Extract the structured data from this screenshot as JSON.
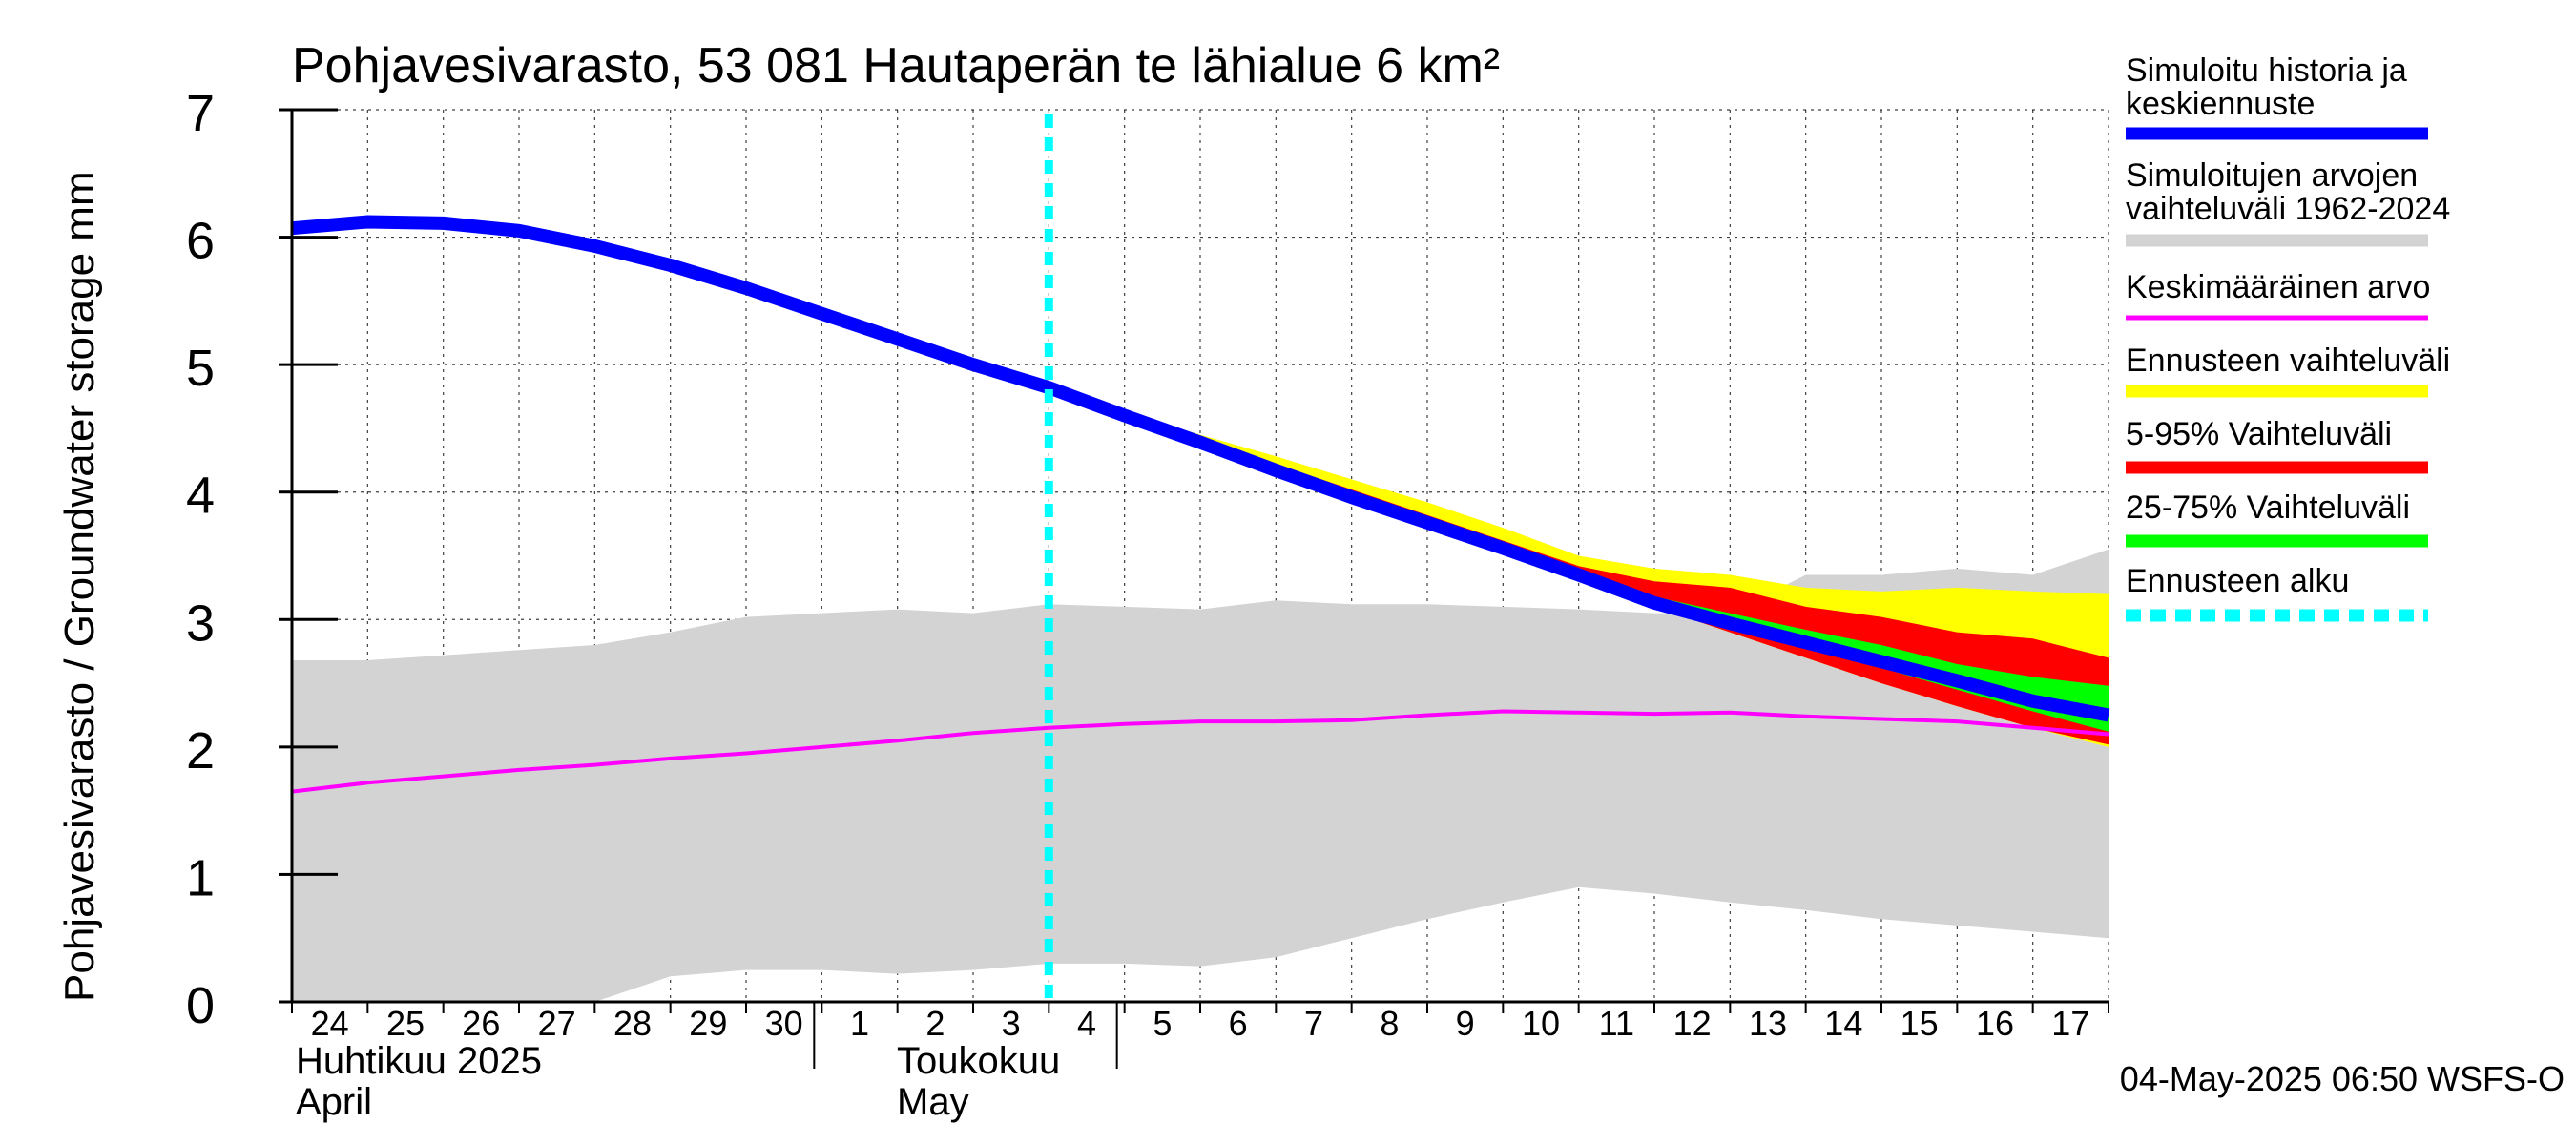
{
  "chart_data": {
    "type": "area",
    "title": "Pohjavesivarasto, 53 081 Hautaperän te lähialue 6 km²",
    "ylabel": "Pohjavesivarasto / Groundwater storage   mm",
    "ylim": [
      0,
      7
    ],
    "yticks": [
      0,
      1,
      2,
      3,
      4,
      5,
      6,
      7
    ],
    "xlim": [
      0,
      24
    ],
    "x_tick_labels": [
      "24",
      "25",
      "26",
      "27",
      "28",
      "29",
      "30",
      "1",
      "2",
      "3",
      "4",
      "5",
      "6",
      "7",
      "8",
      "9",
      "10",
      "11",
      "12",
      "13",
      "14",
      "15",
      "16",
      "17"
    ],
    "month_labels": [
      {
        "fi": "Huhtikuu  2025",
        "en": "April"
      },
      {
        "fi": "Toukokuu",
        "en": "May"
      }
    ],
    "forecast_start_x": 10.0,
    "grid": true,
    "legend_position": "right",
    "legend": [
      {
        "label": "Simuloitu historia ja keskiennuste",
        "color": "#0000ff"
      },
      {
        "label": "Simuloitujen arvojen vaihteluväli 1962-2024",
        "color": "#d3d3d3"
      },
      {
        "label": "Keskimääräinen arvo",
        "color": "#ff00ff"
      },
      {
        "label": "Ennusteen vaihteluväli",
        "color": "#ffff00"
      },
      {
        "label": "5-95% Vaihteluväli",
        "color": "#ff0000"
      },
      {
        "label": "25-75% Vaihteluväli",
        "color": "#00ff00"
      },
      {
        "label": "Ennusteen alku",
        "color": "#00ffff"
      }
    ],
    "series": [
      {
        "name": "Simuloitujen arvojen vaihteluväli 1962-2024",
        "kind": "band",
        "color": "#d3d3d3",
        "x": [
          0,
          1,
          2,
          3,
          4,
          5,
          6,
          7,
          8,
          9,
          10,
          11,
          12,
          13,
          14,
          15,
          16,
          17,
          18,
          19,
          20,
          21,
          22,
          23,
          24
        ],
        "upper": [
          2.68,
          2.68,
          2.72,
          2.76,
          2.8,
          2.9,
          3.02,
          3.05,
          3.08,
          3.05,
          3.12,
          3.1,
          3.08,
          3.15,
          3.12,
          3.12,
          3.1,
          3.08,
          3.05,
          3.05,
          3.35,
          3.35,
          3.4,
          3.35,
          3.55
        ],
        "lower": [
          0.0,
          0.0,
          0.0,
          0.0,
          0.0,
          0.2,
          0.25,
          0.25,
          0.22,
          0.25,
          0.3,
          0.3,
          0.28,
          0.35,
          0.5,
          0.65,
          0.78,
          0.9,
          0.85,
          0.78,
          0.72,
          0.65,
          0.6,
          0.55,
          0.5
        ]
      },
      {
        "name": "Ennusteen vaihteluväli",
        "kind": "band",
        "color": "#ffff00",
        "x": [
          10,
          11,
          12,
          13,
          14,
          15,
          16,
          17,
          18,
          19,
          20,
          21,
          22,
          23,
          24
        ],
        "upper": [
          4.85,
          4.63,
          4.45,
          4.28,
          4.1,
          3.92,
          3.72,
          3.5,
          3.4,
          3.35,
          3.25,
          3.22,
          3.25,
          3.22,
          3.2
        ],
        "lower": [
          4.85,
          4.6,
          4.38,
          4.16,
          3.95,
          3.75,
          3.55,
          3.33,
          3.1,
          2.9,
          2.7,
          2.5,
          2.32,
          2.15,
          2.0
        ]
      },
      {
        "name": "5-95% Vaihteluväli",
        "kind": "band",
        "color": "#ff0000",
        "x": [
          10,
          11,
          12,
          13,
          14,
          15,
          16,
          17,
          18,
          19,
          20,
          21,
          22,
          23,
          24
        ],
        "upper": [
          4.85,
          4.62,
          4.42,
          4.22,
          4.02,
          3.82,
          3.62,
          3.42,
          3.3,
          3.25,
          3.1,
          3.02,
          2.9,
          2.85,
          2.7
        ],
        "lower": [
          4.85,
          4.6,
          4.38,
          4.16,
          3.95,
          3.75,
          3.55,
          3.33,
          3.1,
          2.9,
          2.7,
          2.5,
          2.32,
          2.15,
          2.02
        ]
      },
      {
        "name": "25-75% Vaihteluväli",
        "kind": "band",
        "color": "#00ff00",
        "x": [
          10,
          11,
          12,
          13,
          14,
          15,
          16,
          17,
          18,
          19,
          20,
          21,
          22,
          23,
          24
        ],
        "upper": [
          4.85,
          4.61,
          4.4,
          4.19,
          3.98,
          3.78,
          3.58,
          3.37,
          3.18,
          3.05,
          2.92,
          2.8,
          2.65,
          2.55,
          2.48
        ],
        "lower": [
          4.85,
          4.6,
          4.39,
          4.17,
          3.96,
          3.76,
          3.56,
          3.35,
          3.12,
          2.95,
          2.78,
          2.62,
          2.45,
          2.28,
          2.12
        ]
      },
      {
        "name": "Keskimääräinen arvo",
        "kind": "line",
        "color": "#ff00ff",
        "x": [
          0,
          1,
          2,
          3,
          4,
          5,
          6,
          7,
          8,
          9,
          10,
          11,
          12,
          13,
          14,
          15,
          16,
          17,
          18,
          19,
          20,
          21,
          22,
          23,
          24
        ],
        "y": [
          1.65,
          1.72,
          1.77,
          1.82,
          1.86,
          1.91,
          1.95,
          2.0,
          2.05,
          2.11,
          2.15,
          2.18,
          2.2,
          2.2,
          2.21,
          2.25,
          2.28,
          2.27,
          2.26,
          2.27,
          2.24,
          2.22,
          2.2,
          2.15,
          2.1
        ]
      },
      {
        "name": "Simuloitu historia ja keskiennuste",
        "kind": "line",
        "color": "#0000ff",
        "x": [
          0,
          1,
          2,
          3,
          4,
          5,
          6,
          7,
          8,
          9,
          10,
          11,
          12,
          13,
          14,
          15,
          16,
          17,
          18,
          19,
          20,
          21,
          22,
          23,
          24
        ],
        "y": [
          6.07,
          6.12,
          6.11,
          6.05,
          5.93,
          5.78,
          5.6,
          5.4,
          5.2,
          5.0,
          4.82,
          4.6,
          4.39,
          4.17,
          3.96,
          3.76,
          3.56,
          3.35,
          3.13,
          2.97,
          2.82,
          2.67,
          2.52,
          2.36,
          2.25
        ]
      }
    ]
  },
  "footer": {
    "timestamp": "04-May-2025 06:50 WSFS-O"
  }
}
